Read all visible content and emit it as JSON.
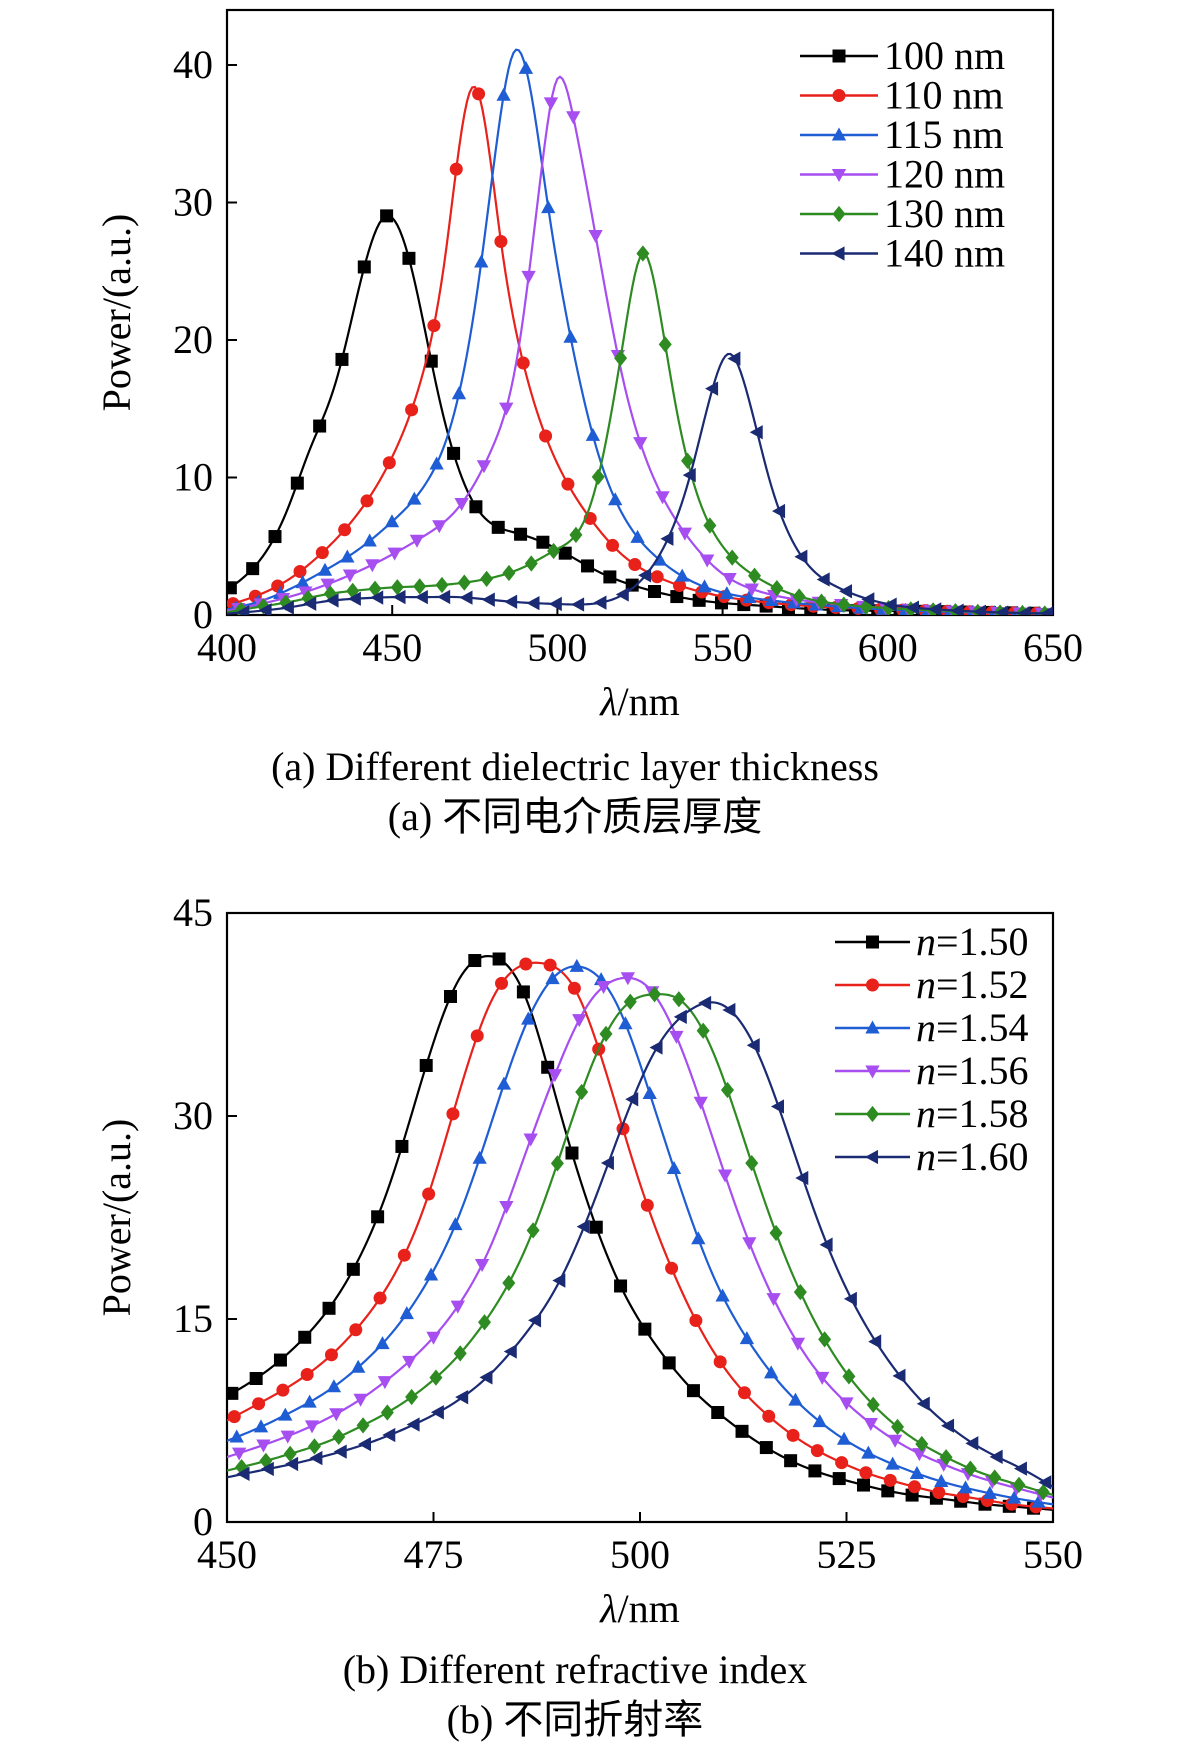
{
  "chart_data": [
    {
      "type": "line",
      "caption_en": "(a) Different dielectric layer thickness",
      "caption_zh": "(a) 不同电介质层厚度",
      "xlabel_italic": "λ",
      "xlabel_rest": "/nm",
      "ylabel": "Power/(a.u.)",
      "xlim": [
        400,
        650
      ],
      "ylim": [
        0,
        44
      ],
      "xticks": [
        400,
        450,
        500,
        550,
        600,
        650
      ],
      "yticks": [
        0,
        10,
        20,
        30,
        40
      ],
      "grid": false,
      "legend_position": "top-right",
      "series": [
        {
          "name": "100 nm",
          "color": "#000000",
          "marker": "square",
          "x": [
            400,
            410,
            418,
            425,
            433,
            441,
            448,
            455,
            464,
            475,
            487,
            500,
            512,
            525,
            545,
            560,
            580,
            600,
            650
          ],
          "y": [
            1.8,
            4.0,
            7.5,
            12.0,
            17.0,
            24.8,
            29.0,
            26.0,
            16.0,
            8.0,
            6.0,
            4.8,
            3.2,
            2.0,
            1.0,
            0.7,
            0.4,
            0.3,
            0.1
          ]
        },
        {
          "name": "110 nm",
          "color": "#e8211b",
          "marker": "circle",
          "x": [
            400,
            410,
            420,
            430,
            440,
            450,
            458,
            466,
            474,
            476,
            483,
            490,
            500,
            510,
            520,
            530,
            545,
            560,
            580,
            600,
            650
          ],
          "y": [
            0.7,
            1.5,
            2.8,
            4.8,
            7.5,
            11.5,
            16.5,
            26.0,
            38.3,
            38.0,
            27.0,
            18.0,
            11.0,
            7.0,
            4.3,
            2.8,
            1.6,
            1.0,
            0.6,
            0.4,
            0.1
          ]
        },
        {
          "name": "115 nm",
          "color": "#1e5dd4",
          "marker": "triangle-up",
          "x": [
            400,
            410,
            420,
            430,
            440,
            450,
            460,
            468,
            476,
            482,
            487,
            492,
            497,
            505,
            512,
            520,
            530,
            545,
            560,
            580,
            600,
            650
          ],
          "y": [
            0.4,
            1.0,
            2.0,
            3.3,
            4.8,
            6.8,
            9.5,
            14.0,
            24.0,
            35.0,
            41.0,
            38.0,
            30.0,
            19.0,
            12.0,
            7.2,
            4.2,
            2.0,
            1.2,
            0.7,
            0.4,
            0.1
          ]
        },
        {
          "name": "120 nm",
          "color": "#a64ef0",
          "marker": "triangle-down",
          "x": [
            400,
            410,
            420,
            430,
            440,
            450,
            460,
            470,
            480,
            488,
            495,
            500,
            505,
            512,
            520,
            530,
            540,
            550,
            560,
            580,
            600,
            650
          ],
          "y": [
            0.3,
            0.8,
            1.4,
            2.2,
            3.2,
            4.4,
            5.8,
            7.8,
            12.0,
            19.0,
            32.0,
            39.0,
            36.0,
            27.0,
            17.0,
            9.5,
            5.5,
            3.0,
            1.8,
            0.9,
            0.5,
            0.1
          ]
        },
        {
          "name": "130 nm",
          "color": "#2e8b22",
          "marker": "diamond",
          "x": [
            400,
            410,
            420,
            430,
            440,
            450,
            460,
            470,
            480,
            490,
            500,
            510,
            515,
            520,
            526,
            531,
            536,
            542,
            550,
            560,
            570,
            585,
            600,
            650
          ],
          "y": [
            0.2,
            0.6,
            1.0,
            1.5,
            1.8,
            2.0,
            2.1,
            2.3,
            2.7,
            3.5,
            4.8,
            8.0,
            13.0,
            20.0,
            26.3,
            22.0,
            15.0,
            9.0,
            5.0,
            2.8,
            1.6,
            0.8,
            0.5,
            0.1
          ]
        },
        {
          "name": "140 nm",
          "color": "#1a2a73",
          "marker": "triangle-left",
          "x": [
            400,
            410,
            420,
            430,
            440,
            450,
            460,
            470,
            480,
            490,
            500,
            510,
            520,
            530,
            540,
            547,
            552,
            557,
            564,
            572,
            585,
            600,
            615,
            632,
            650
          ],
          "y": [
            0.1,
            0.3,
            0.6,
            1.0,
            1.2,
            1.3,
            1.3,
            1.3,
            1.1,
            0.9,
            0.8,
            0.8,
            1.5,
            4.0,
            10.0,
            16.5,
            19.0,
            16.5,
            10.0,
            5.0,
            2.0,
            0.8,
            0.4,
            0.2,
            0.1
          ]
        }
      ]
    },
    {
      "type": "line",
      "caption_en": "(b) Different refractive index",
      "caption_zh": "(b) 不同折射率",
      "xlabel_italic": "λ",
      "xlabel_rest": "/nm",
      "ylabel": "Power/(a.u.)",
      "xlim": [
        450,
        550
      ],
      "ylim": [
        0,
        45
      ],
      "xticks": [
        450,
        475,
        500,
        525,
        550
      ],
      "yticks": [
        0,
        15,
        30,
        45
      ],
      "grid": false,
      "legend_position": "top-right",
      "series": [
        {
          "name_italic": "n",
          "name": "=1.50",
          "color": "#000000",
          "marker": "square",
          "x": [
            450,
            454,
            458,
            462,
            466,
            470,
            474,
            478,
            482,
            486,
            490,
            494,
            498,
            502,
            506,
            510,
            514,
            518,
            522,
            526,
            530,
            534,
            538,
            542,
            546,
            550
          ],
          "y": [
            9.3,
            10.8,
            12.8,
            15.5,
            19.5,
            25.5,
            33.5,
            40.0,
            41.8,
            39.0,
            31.0,
            23.0,
            17.0,
            13.0,
            10.0,
            7.8,
            6.0,
            4.6,
            3.6,
            2.9,
            2.3,
            1.9,
            1.6,
            1.3,
            1.1,
            0.9
          ]
        },
        {
          "name_italic": "n",
          "name": "=1.52",
          "color": "#e8211b",
          "marker": "circle",
          "x": [
            450,
            454,
            458,
            462,
            466,
            470,
            474,
            478,
            482,
            486,
            488,
            492,
            496,
            500,
            504,
            508,
            512,
            516,
            520,
            524,
            528,
            532,
            536,
            540,
            544,
            550
          ],
          "y": [
            7.5,
            8.8,
            10.2,
            12.0,
            14.5,
            18.0,
            23.5,
            31.5,
            38.5,
            41.2,
            41.3,
            39.5,
            33.0,
            25.0,
            18.5,
            13.5,
            10.0,
            7.6,
            5.8,
            4.5,
            3.5,
            2.8,
            2.2,
            1.8,
            1.4,
            1.0
          ]
        },
        {
          "name_italic": "n",
          "name": "=1.54",
          "color": "#1e5dd4",
          "marker": "triangle-up",
          "x": [
            450,
            454,
            458,
            462,
            466,
            470,
            474,
            478,
            482,
            486,
            490,
            493,
            497,
            501,
            505,
            509,
            513,
            517,
            521,
            525,
            529,
            533,
            537,
            541,
            545,
            550
          ],
          "y": [
            6.0,
            7.0,
            8.2,
            9.6,
            11.5,
            14.0,
            17.5,
            22.5,
            29.5,
            36.5,
            40.5,
            41.0,
            38.5,
            32.0,
            24.5,
            18.0,
            13.5,
            10.2,
            7.8,
            6.0,
            4.7,
            3.7,
            2.9,
            2.3,
            1.8,
            1.3
          ]
        },
        {
          "name_italic": "n",
          "name": "=1.56",
          "color": "#a64ef0",
          "marker": "triangle-down",
          "x": [
            450,
            454,
            458,
            462,
            466,
            470,
            474,
            478,
            482,
            486,
            490,
            494,
            498,
            501,
            505,
            509,
            513,
            517,
            521,
            525,
            529,
            533,
            537,
            541,
            545,
            550
          ],
          "y": [
            4.8,
            5.6,
            6.5,
            7.6,
            9.0,
            10.8,
            13.0,
            16.0,
            20.5,
            27.0,
            33.5,
            38.5,
            40.2,
            39.5,
            35.0,
            28.0,
            21.0,
            15.5,
            11.5,
            8.8,
            6.8,
            5.3,
            4.2,
            3.3,
            2.6,
            1.8
          ]
        },
        {
          "name_italic": "n",
          "name": "=1.58",
          "color": "#2e8b22",
          "marker": "diamond",
          "x": [
            450,
            454,
            458,
            462,
            466,
            470,
            474,
            478,
            482,
            486,
            490,
            494,
            498,
            502,
            505,
            509,
            513,
            517,
            521,
            525,
            529,
            533,
            537,
            541,
            545,
            550
          ],
          "y": [
            3.8,
            4.4,
            5.1,
            5.9,
            7.0,
            8.3,
            10.0,
            12.3,
            15.5,
            20.0,
            26.5,
            33.5,
            38.0,
            39.0,
            38.5,
            34.5,
            27.5,
            20.5,
            15.0,
            11.0,
            8.2,
            6.2,
            4.8,
            3.7,
            2.9,
            2.0
          ]
        },
        {
          "name_italic": "n",
          "name": "=1.60",
          "color": "#1a2a73",
          "marker": "triangle-left",
          "x": [
            450,
            454,
            458,
            462,
            466,
            470,
            474,
            478,
            482,
            486,
            490,
            494,
            498,
            502,
            506,
            510,
            514,
            518,
            522,
            526,
            530,
            534,
            538,
            542,
            546,
            550
          ],
          "y": [
            3.3,
            3.8,
            4.3,
            4.9,
            5.6,
            6.5,
            7.6,
            9.0,
            11.0,
            13.8,
            17.5,
            23.0,
            29.5,
            35.0,
            37.8,
            38.2,
            35.0,
            28.5,
            21.5,
            16.0,
            12.0,
            9.0,
            6.8,
            5.2,
            4.0,
            2.6
          ]
        }
      ]
    }
  ]
}
